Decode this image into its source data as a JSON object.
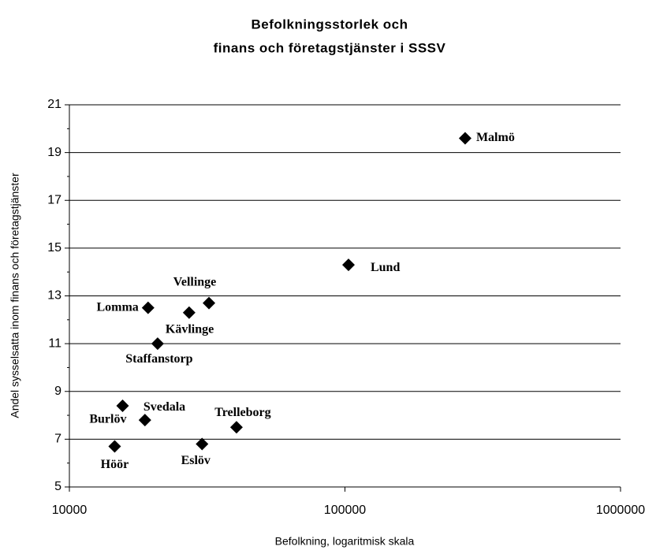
{
  "chart_data": {
    "type": "scatter",
    "title": [
      "Befolkningsstorlek och",
      "finans och företagstjänster i SSSV"
    ],
    "xlabel": "Befolkning, logaritmisk skala",
    "ylabel": "Andel sysselsatta inom finans och företagstjänster",
    "xscale": "log",
    "xlim": [
      10000,
      1000000
    ],
    "xticks": [
      10000,
      100000,
      1000000
    ],
    "ylim": [
      5,
      21
    ],
    "yticks": [
      5,
      7,
      9,
      11,
      13,
      15,
      17,
      19,
      21
    ],
    "grid": true,
    "color": "#000000",
    "labels": [
      "Malmö",
      "Lund",
      "Vellinge",
      "Lomma",
      "Kävlinge",
      "Staffanstorp",
      "Burlöv",
      "Svedala",
      "Höör",
      "Eslöv",
      "Trelleborg"
    ],
    "x": [
      273000,
      103000,
      32100,
      19300,
      27200,
      20900,
      15600,
      18800,
      14600,
      30300,
      40400
    ],
    "values": [
      19.6,
      14.3,
      12.7,
      12.5,
      12.3,
      11.0,
      8.4,
      7.8,
      6.7,
      6.8,
      7.5
    ]
  }
}
